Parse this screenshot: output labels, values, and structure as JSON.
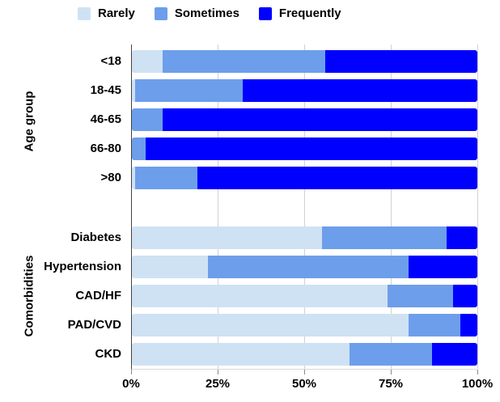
{
  "legend": {
    "items": [
      {
        "label": "Rarely",
        "color": "#cfe2f3"
      },
      {
        "label": "Sometimes",
        "color": "#6d9eeb"
      },
      {
        "label": "Frequently",
        "color": "#0000fe"
      }
    ]
  },
  "chart_data": {
    "type": "bar",
    "orientation": "horizontal",
    "stacked": true,
    "units": "percent",
    "xlim": [
      0,
      100
    ],
    "x_tick_labels": [
      "0%",
      "25%",
      "50%",
      "75%",
      "100%"
    ],
    "legend_position": "top",
    "grid": true,
    "series_names": [
      "Rarely",
      "Sometimes",
      "Frequently"
    ],
    "groups": [
      {
        "title": "Age group",
        "categories": [
          "<18",
          "18-45",
          "46-65",
          "66-80",
          ">80"
        ],
        "rows": [
          [
            9,
            47,
            44
          ],
          [
            1,
            31,
            68
          ],
          [
            0,
            9,
            91
          ],
          [
            0,
            4,
            96
          ],
          [
            1,
            18,
            81
          ]
        ]
      },
      {
        "title": "Comorbidities",
        "categories": [
          "Diabetes",
          "Hypertension",
          "CAD/HF",
          "PAD/CVD",
          "CKD"
        ],
        "rows": [
          [
            55,
            36,
            9
          ],
          [
            22,
            58,
            20
          ],
          [
            74,
            19,
            7
          ],
          [
            80,
            15,
            5
          ],
          [
            63,
            24,
            13
          ]
        ]
      }
    ]
  }
}
